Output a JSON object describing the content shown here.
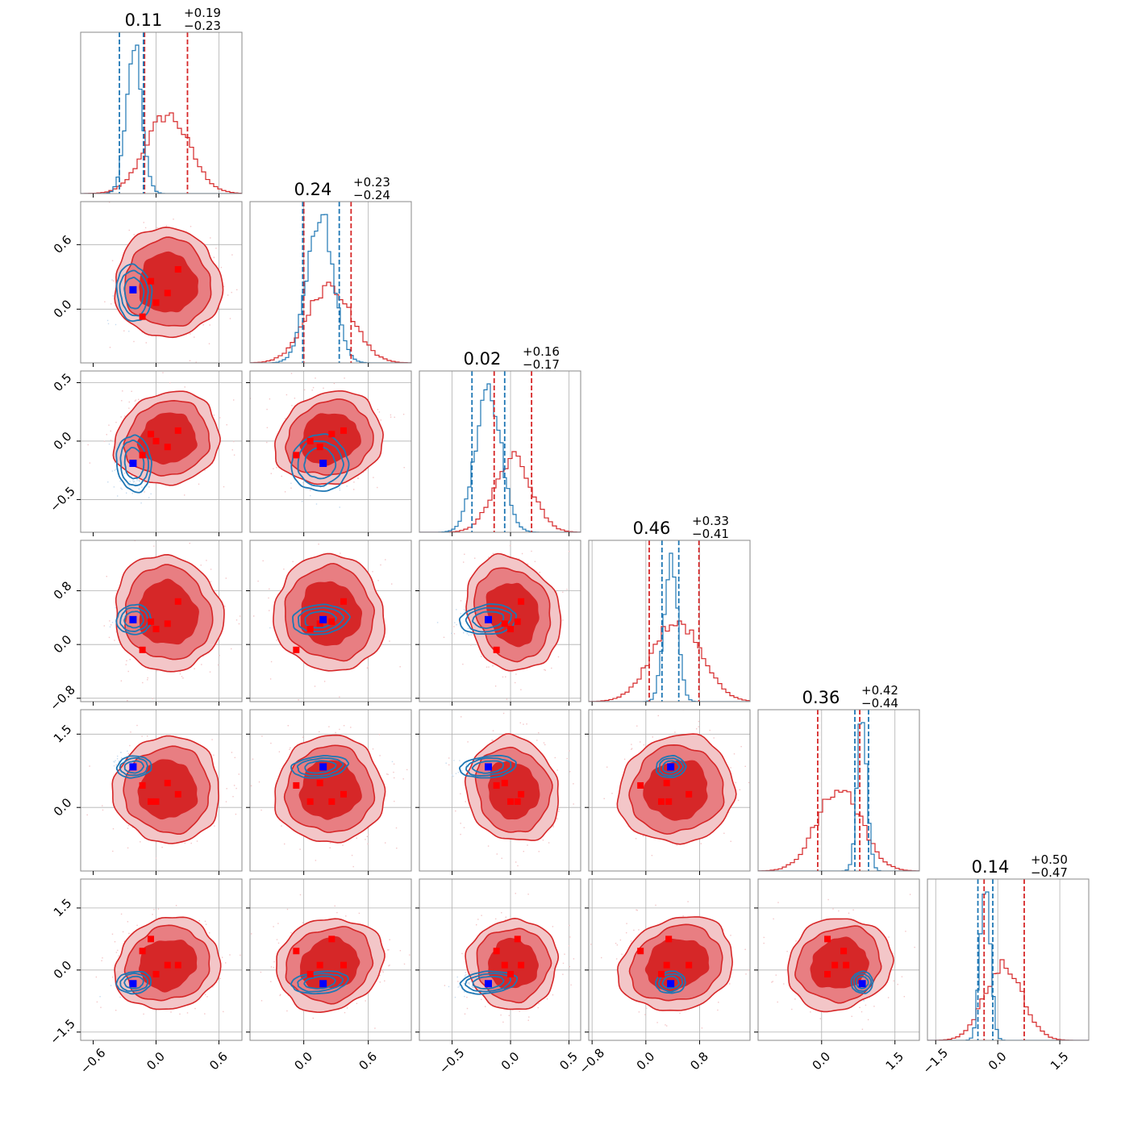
{
  "chart_data": {
    "type": "corner",
    "title": "",
    "grid": true,
    "colors": {
      "red": "#d62728",
      "red_mid": "#e87e82",
      "red_light": "#f3c6c8",
      "blue": "#1f77b4",
      "marker_red": "#ff0000",
      "marker_blue": "#0000ff"
    },
    "params": [
      {
        "index": 0,
        "title": {
          "median": "0.11",
          "plus": "+0.19",
          "minus": "−0.23"
        },
        "range": [
          -0.72,
          0.82
        ],
        "ticks": [
          -0.6,
          0.0,
          0.6
        ],
        "tick_labels": [
          "−0.6",
          "0.0",
          "0.6"
        ],
        "gridlines": [
          0.0,
          0.6
        ],
        "quantiles_blue": [
          -0.35,
          -0.12
        ],
        "quantiles_red": [
          -0.11,
          0.3
        ],
        "hist_blue": {
          "mu": -0.21,
          "sigma": 0.075
        },
        "hist_red": {
          "mu": 0.11,
          "sigma": 0.21
        }
      },
      {
        "index": 1,
        "title": {
          "median": "0.24",
          "plus": "+0.23",
          "minus": "−0.24"
        },
        "range": [
          -0.5,
          1.0
        ],
        "ticks": [
          0.0,
          0.6
        ],
        "tick_labels": [
          "0.0",
          "0.6"
        ],
        "gridlines": [
          0.0,
          0.6
        ],
        "quantiles_blue": [
          -0.01,
          0.33
        ],
        "quantiles_red": [
          0.0,
          0.44
        ],
        "hist_blue": {
          "mu": 0.15,
          "sigma": 0.12
        },
        "hist_red": {
          "mu": 0.24,
          "sigma": 0.21
        }
      },
      {
        "index": 2,
        "title": {
          "median": "0.02",
          "plus": "+0.16",
          "minus": "−0.17"
        },
        "range": [
          -0.78,
          0.6
        ],
        "ticks": [
          -0.5,
          0.0,
          0.5
        ],
        "tick_labels": [
          "−0.5",
          "0.0",
          "0.5"
        ],
        "gridlines": [
          -0.5,
          0.0,
          0.5
        ],
        "quantiles_blue": [
          -0.33,
          -0.05
        ],
        "quantiles_red": [
          -0.14,
          0.18
        ],
        "hist_blue": {
          "mu": -0.19,
          "sigma": 0.11
        },
        "hist_red": {
          "mu": 0.02,
          "sigma": 0.16
        }
      },
      {
        "index": 3,
        "title": {
          "median": "0.46",
          "plus": "+0.33",
          "minus": "−0.41"
        },
        "range": [
          -0.85,
          1.55
        ],
        "ticks": [
          -0.8,
          0.0,
          0.8
        ],
        "tick_labels": [
          "−0.8",
          "0.0",
          "0.8"
        ],
        "gridlines": [
          -0.8,
          0.0,
          0.8
        ],
        "quantiles_blue": [
          0.24,
          0.49
        ],
        "quantiles_red": [
          0.05,
          0.79
        ],
        "hist_blue": {
          "mu": 0.37,
          "sigma": 0.1
        },
        "hist_red": {
          "mu": 0.46,
          "sigma": 0.36
        }
      },
      {
        "index": 4,
        "title": {
          "median": "0.36",
          "plus": "+0.42",
          "minus": "−0.44"
        },
        "range": [
          -1.3,
          2.0
        ],
        "ticks": [
          0.0,
          1.5
        ],
        "tick_labels": [
          "0.0",
          "1.5"
        ],
        "gridlines": [
          0.0,
          1.5
        ],
        "quantiles_blue": [
          0.68,
          0.96
        ],
        "quantiles_red": [
          -0.08,
          0.78
        ],
        "hist_blue": {
          "mu": 0.83,
          "sigma": 0.1
        },
        "hist_red": {
          "mu": 0.36,
          "sigma": 0.45
        }
      },
      {
        "index": 5,
        "title": {
          "median": "0.14",
          "plus": "+0.50",
          "minus": "−0.47"
        },
        "range": [
          -1.7,
          2.2
        ],
        "ticks": [
          -1.5,
          0.0,
          1.5
        ],
        "tick_labels": [
          "−1.5",
          "0.0",
          "1.5"
        ],
        "gridlines": [
          -1.5,
          0.0,
          1.5
        ],
        "quantiles_blue": [
          -0.48,
          -0.12
        ],
        "quantiles_red": [
          -0.33,
          0.64
        ],
        "hist_blue": {
          "mu": -0.3,
          "sigma": 0.12
        },
        "hist_red": {
          "mu": 0.14,
          "sigma": 0.45
        }
      }
    ],
    "points": {
      "blue": [
        -0.22,
        0.18,
        -0.19,
        0.37,
        0.83,
        -0.33
      ],
      "red": [
        [
          -0.05,
          0.26,
          0.06,
          0.34,
          0.12,
          0.75
        ],
        [
          0.11,
          0.15,
          -0.05,
          0.31,
          0.5,
          0.12
        ],
        [
          0.21,
          0.37,
          0.09,
          0.64,
          0.27,
          0.12
        ],
        [
          -0.13,
          -0.07,
          -0.12,
          -0.08,
          0.45,
          0.46
        ],
        [
          0.0,
          0.06,
          0.0,
          0.23,
          0.12,
          -0.1
        ]
      ]
    },
    "red_ellipse_scale": 1.35,
    "blue_ellipse_scale": 1.0
  }
}
